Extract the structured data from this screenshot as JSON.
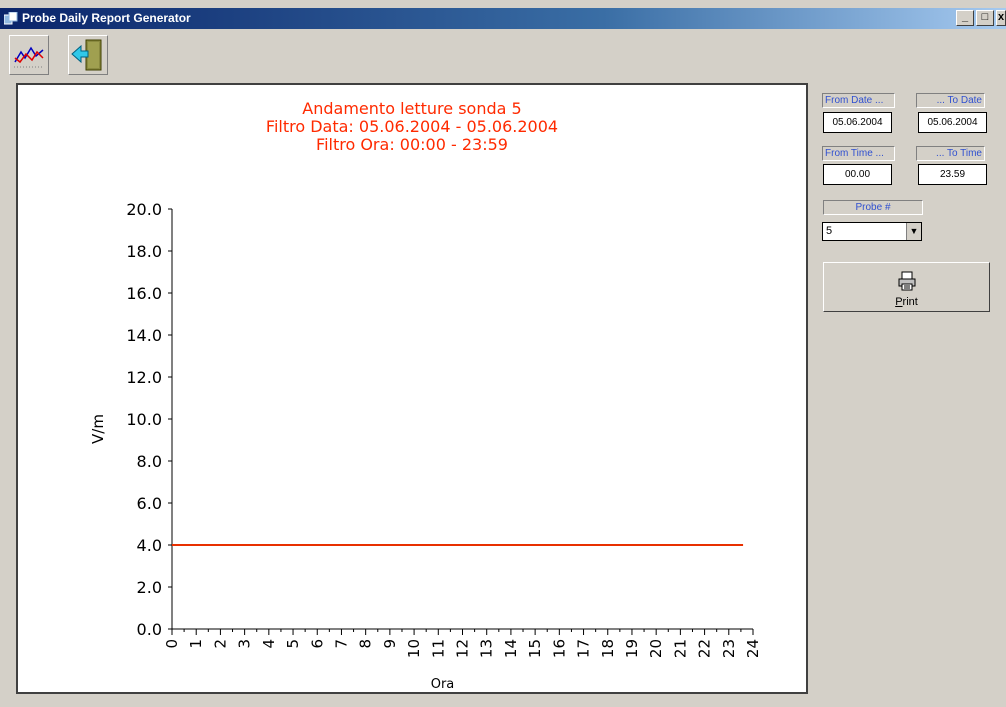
{
  "window": {
    "title": "Probe Daily Report Generator",
    "min": "_",
    "max": "□",
    "close": "x"
  },
  "toolbar": {
    "chart_icon": "chart-icon",
    "exit_icon": "exit-door-icon"
  },
  "filters": {
    "from_date_label": "From Date ...",
    "to_date_label": "... To Date",
    "from_date_value": "05.06.2004",
    "to_date_value": "05.06.2004",
    "from_time_label": "From Time ...",
    "to_time_label": "... To Time",
    "from_time_value": "00.00",
    "to_time_value": "23.59",
    "probe_label": "Probe #",
    "probe_value": "5"
  },
  "print_button": {
    "label_first": "P",
    "label_rest": "rint",
    "icon": "printer-icon"
  },
  "colors": {
    "title_red": "#ff2a00",
    "line_red": "#e83000",
    "axis": "#000000"
  },
  "chart_data": {
    "type": "line",
    "title": [
      "Andamento letture sonda 5",
      "Filtro Data: 05.06.2004 - 05.06.2004",
      "Filtro Ora:  00:00 - 23:59"
    ],
    "xlabel": "Ora",
    "ylabel": "V/m",
    "xlim": [
      0,
      24
    ],
    "ylim": [
      0,
      20
    ],
    "yticks": [
      "0.0",
      "2.0",
      "4.0",
      "6.0",
      "8.0",
      "10.0",
      "12.0",
      "14.0",
      "16.0",
      "18.0",
      "20.0"
    ],
    "xticks": [
      "0",
      "1",
      "2",
      "3",
      "4",
      "5",
      "6",
      "7",
      "8",
      "9",
      "10",
      "11",
      "12",
      "13",
      "14",
      "15",
      "16",
      "17",
      "18",
      "19",
      "20",
      "21",
      "22",
      "23",
      "24"
    ],
    "series": [
      {
        "x": [
          0,
          23.59
        ],
        "y": [
          4.0,
          4.0
        ]
      }
    ]
  }
}
